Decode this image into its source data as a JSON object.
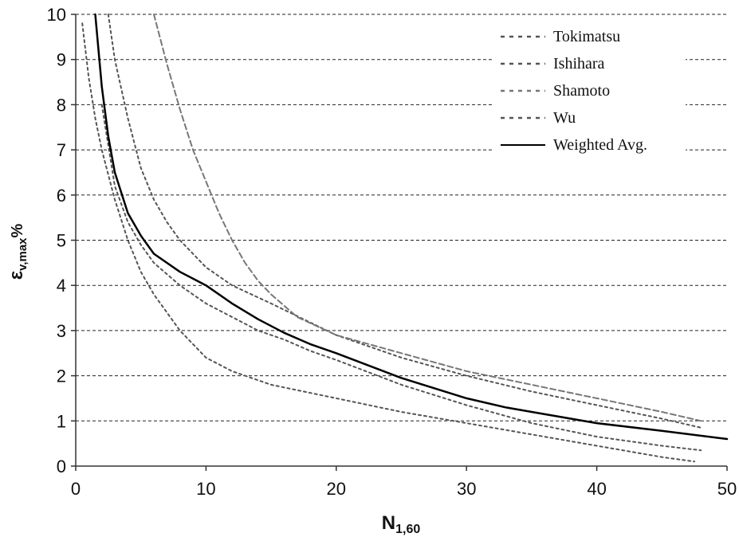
{
  "chart_data": {
    "type": "line",
    "xlabel": {
      "main": "N",
      "sub": "1,60"
    },
    "ylabel": {
      "main": "ε",
      "sub": "v,max",
      "suffix": "%"
    },
    "xlim": [
      0,
      50
    ],
    "ylim": [
      0,
      10
    ],
    "xticks": [
      "0",
      "10",
      "20",
      "30",
      "40",
      "50"
    ],
    "yticks": [
      "0",
      "1",
      "2",
      "3",
      "4",
      "5",
      "6",
      "7",
      "8",
      "9",
      "10"
    ],
    "grid": "horizontal dashed",
    "legend_position": "top-right",
    "series": [
      {
        "name": "Tokimatsu",
        "style": "dotted",
        "color": "#555555",
        "x": [
          0.5,
          1,
          1.5,
          2,
          3,
          4,
          5,
          6,
          8,
          10,
          12,
          15,
          20,
          25,
          30,
          35,
          40,
          45,
          47.5
        ],
        "y": [
          9.8,
          8.6,
          7.7,
          7.0,
          5.9,
          5.0,
          4.3,
          3.8,
          3.0,
          2.4,
          2.1,
          1.8,
          1.5,
          1.2,
          0.95,
          0.7,
          0.45,
          0.2,
          0.1
        ]
      },
      {
        "name": "Ishihara",
        "style": "dotted",
        "color": "#555555",
        "x": [
          2.5,
          3,
          4,
          5,
          6,
          7,
          8,
          10,
          12,
          15,
          20,
          25,
          30,
          35,
          40,
          45,
          48
        ],
        "y": [
          10.0,
          9.0,
          7.7,
          6.6,
          5.9,
          5.4,
          5.0,
          4.4,
          4.0,
          3.6,
          2.9,
          2.4,
          2.0,
          1.65,
          1.35,
          1.05,
          0.85
        ]
      },
      {
        "name": "Shamoto",
        "style": "dashed",
        "color": "#777777",
        "x": [
          6,
          7,
          8,
          9,
          10,
          11,
          12,
          13,
          14,
          15,
          17,
          20,
          25,
          30,
          35,
          40,
          45,
          48
        ],
        "y": [
          10.0,
          8.9,
          7.9,
          7.0,
          6.3,
          5.6,
          5.0,
          4.5,
          4.1,
          3.8,
          3.3,
          2.9,
          2.5,
          2.1,
          1.8,
          1.5,
          1.2,
          1.0
        ]
      },
      {
        "name": "Wu",
        "style": "dotted",
        "color": "#555555",
        "x": [
          2,
          3,
          4,
          5,
          6,
          8,
          10,
          12,
          14,
          16,
          18,
          20,
          25,
          30,
          35,
          40,
          45,
          48
        ],
        "y": [
          8.0,
          6.2,
          5.4,
          4.9,
          4.5,
          4.0,
          3.6,
          3.3,
          3.0,
          2.8,
          2.55,
          2.35,
          1.8,
          1.35,
          0.95,
          0.65,
          0.45,
          0.35
        ]
      },
      {
        "name": "Weighted Avg.",
        "style": "solid",
        "color": "#000000",
        "x": [
          1.5,
          2,
          2.5,
          3,
          4,
          5,
          6,
          8,
          10,
          12,
          14,
          16,
          18,
          20,
          25,
          30,
          33,
          35,
          40,
          45,
          50
        ],
        "y": [
          10.0,
          8.4,
          7.3,
          6.5,
          5.6,
          5.1,
          4.7,
          4.3,
          4.0,
          3.6,
          3.25,
          2.95,
          2.7,
          2.5,
          1.95,
          1.5,
          1.3,
          1.2,
          0.95,
          0.78,
          0.6
        ]
      }
    ]
  }
}
